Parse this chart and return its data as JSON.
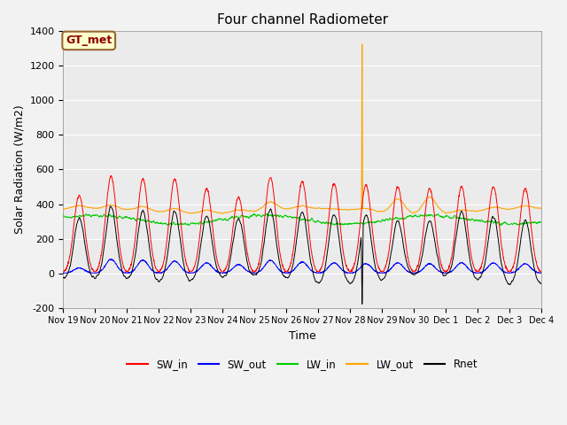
{
  "title": "Four channel Radiometer",
  "ylabel": "Solar Radiation (W/m2)",
  "xlabel": "Time",
  "ylim": [
    -200,
    1400
  ],
  "yticks": [
    -200,
    0,
    200,
    400,
    600,
    800,
    1000,
    1200,
    1400
  ],
  "xtick_labels": [
    "Nov 19",
    "Nov 20",
    "Nov 21",
    "Nov 22",
    "Nov 23",
    "Nov 24",
    "Nov 25",
    "Nov 26",
    "Nov 27",
    "Nov 28",
    "Nov 29",
    "Nov 30",
    "Dec 1",
    "Dec 2",
    "Dec 3",
    "Dec 4"
  ],
  "annotation_text": "GT_met",
  "annotation_bg": "#FFFFCC",
  "annotation_border": "#996633",
  "colors": {
    "SW_in": "#FF0000",
    "SW_out": "#0000FF",
    "LW_in": "#00CC00",
    "LW_out": "#FFA500",
    "Rnet": "#000000"
  },
  "legend_labels": [
    "SW_in",
    "SW_out",
    "LW_in",
    "LW_out",
    "Rnet"
  ],
  "plot_bg": "#EBEBEB",
  "fig_bg": "#F2F2F2",
  "spike_day": 9,
  "spike_value": 1325,
  "n_days": 15,
  "SW_peaks": [
    450,
    560,
    545,
    545,
    490,
    440,
    555,
    530,
    520,
    510,
    500,
    490,
    500,
    500,
    490
  ],
  "SW_out_peaks": [
    30,
    80,
    75,
    70,
    60,
    50,
    75,
    65,
    60,
    55,
    60,
    55,
    60,
    60,
    55
  ],
  "LW_out_day_peaks": [
    395,
    405,
    410,
    410,
    398,
    390,
    455,
    390,
    348,
    388,
    520,
    550,
    388,
    392,
    392
  ]
}
